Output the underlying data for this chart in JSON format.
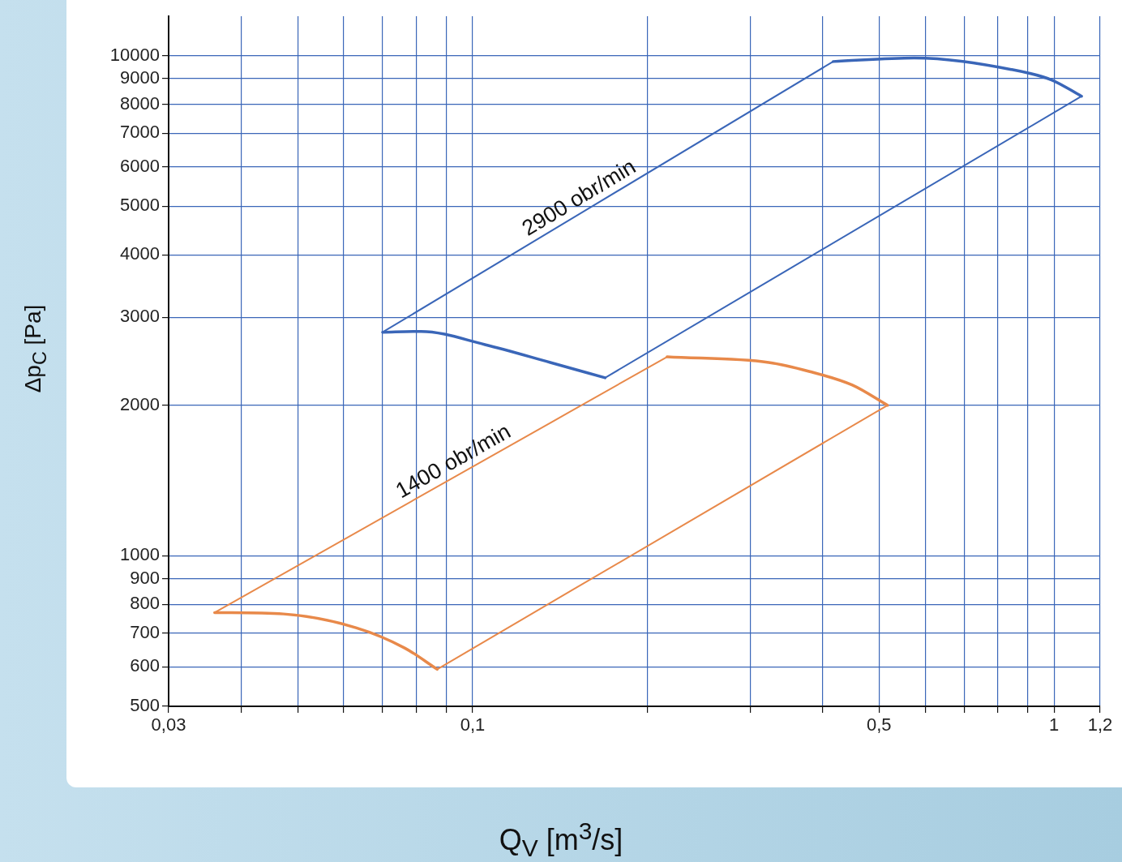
{
  "chart_data": {
    "type": "line",
    "xlabel": "Q$_{V}$ [m$^{3}$/s]",
    "ylabel": "Δp$_{C}$ [Pa]",
    "log": "xy",
    "grid": true,
    "legend": false,
    "marker": "none",
    "line_style": "solid",
    "xlim": [
      0.03,
      1.2
    ],
    "ylim": [
      500,
      12000
    ],
    "xticks": [
      {
        "value": 0.03,
        "label": "0,03"
      },
      {
        "value": 0.04,
        "label": null
      },
      {
        "value": 0.05,
        "label": null
      },
      {
        "value": 0.06,
        "label": null
      },
      {
        "value": 0.07,
        "label": null
      },
      {
        "value": 0.08,
        "label": null
      },
      {
        "value": 0.09,
        "label": null
      },
      {
        "value": 0.1,
        "label": "0,1"
      },
      {
        "value": 0.2,
        "label": null
      },
      {
        "value": 0.3,
        "label": null
      },
      {
        "value": 0.4,
        "label": null
      },
      {
        "value": 0.5,
        "label": "0,5"
      },
      {
        "value": 0.6,
        "label": null
      },
      {
        "value": 0.7,
        "label": null
      },
      {
        "value": 0.8,
        "label": null
      },
      {
        "value": 0.9,
        "label": null
      },
      {
        "value": 1,
        "label": "1"
      },
      {
        "value": 1.2,
        "label": "1,2"
      }
    ],
    "yticks": [
      500,
      600,
      700,
      800,
      900,
      1000,
      2000,
      3000,
      4000,
      5000,
      6000,
      7000,
      8000,
      9000,
      10000
    ],
    "series": [
      {
        "color": "#3a66b8",
        "x": [
          0.07,
          0.0815,
          0.105,
          0.136,
          0.169
        ],
        "values": [
          2800,
          2810,
          2645,
          2436,
          2270
        ]
      },
      {
        "color": "#3a66b8",
        "x": [
          0.169,
          1.115
        ],
        "values": [
          2270,
          8300
        ]
      },
      {
        "color": "#3a66b8",
        "x": [
          0.417,
          0.575,
          0.844,
          0.99,
          1.115
        ],
        "values": [
          9740,
          9900,
          9390,
          8950,
          8300
        ]
      },
      {
        "color": "#3a66b8",
        "x": [
          0.07,
          0.417
        ],
        "values": [
          2800,
          9740
        ]
      },
      {
        "color": "#e8894a",
        "x": [
          0.036,
          0.0473,
          0.063,
          0.0764,
          0.0869
        ],
        "values": [
          770,
          765,
          718,
          654,
          593
        ]
      },
      {
        "color": "#e8894a",
        "x": [
          0.0869,
          0.517
        ],
        "values": [
          593,
          2000
        ]
      },
      {
        "color": "#e8894a",
        "x": [
          0.216,
          0.323,
          0.379,
          0.45,
          0.517
        ],
        "values": [
          2500,
          2436,
          2338,
          2195,
          2000
        ]
      },
      {
        "color": "#e8894a",
        "x": [
          0.036,
          0.216
        ],
        "values": [
          770,
          2500
        ]
      }
    ],
    "annotations": [
      "2900 obr/min",
      "1400 obr/min"
    ]
  }
}
